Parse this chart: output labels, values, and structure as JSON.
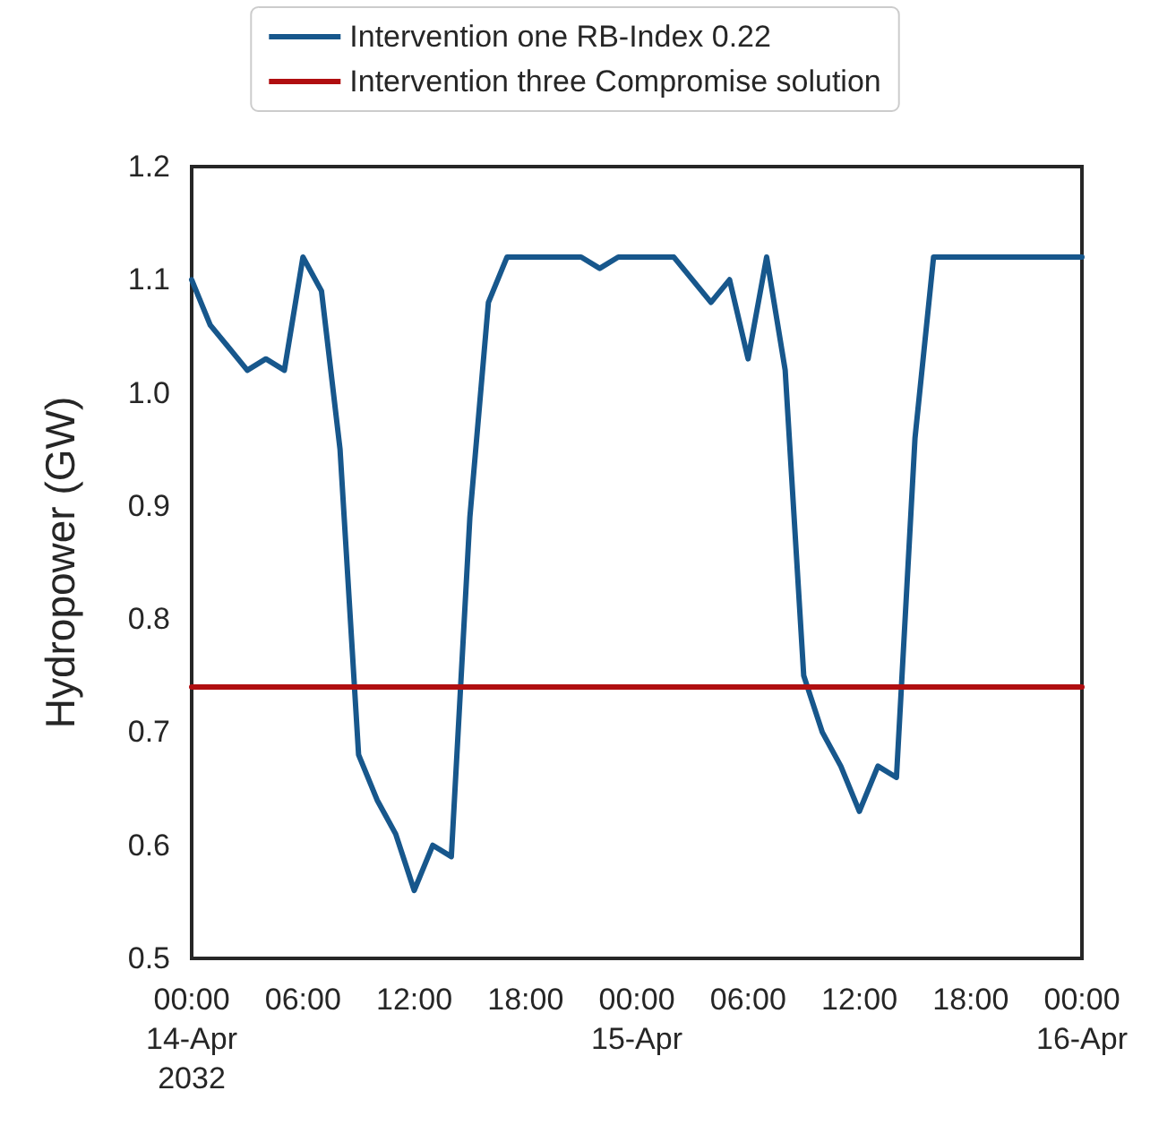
{
  "chart_data": {
    "type": "line",
    "ylabel": "Hydropower (GW)",
    "series": [
      {
        "name": "Intervention one RB-Index 0.22",
        "color": "#17578c",
        "x": [
          "2032-04-14T00:00",
          "2032-04-14T01:00",
          "2032-04-14T03:00",
          "2032-04-14T04:00",
          "2032-04-14T05:00",
          "2032-04-14T06:00",
          "2032-04-14T07:00",
          "2032-04-14T08:00",
          "2032-04-14T09:00",
          "2032-04-14T10:00",
          "2032-04-14T11:00",
          "2032-04-14T12:00",
          "2032-04-14T13:00",
          "2032-04-14T14:00",
          "2032-04-14T15:00",
          "2032-04-14T16:00",
          "2032-04-14T17:00",
          "2032-04-14T20:00",
          "2032-04-14T21:00",
          "2032-04-14T22:00",
          "2032-04-14T23:00",
          "2032-04-15T01:00",
          "2032-04-15T02:00",
          "2032-04-15T03:00",
          "2032-04-15T04:00",
          "2032-04-15T05:00",
          "2032-04-15T06:00",
          "2032-04-15T07:00",
          "2032-04-15T08:00",
          "2032-04-15T09:00",
          "2032-04-15T10:00",
          "2032-04-15T11:00",
          "2032-04-15T12:00",
          "2032-04-15T13:00",
          "2032-04-15T14:00",
          "2032-04-15T15:00",
          "2032-04-15T16:00",
          "2032-04-16T00:00"
        ],
        "values": [
          1.1,
          1.06,
          1.02,
          1.03,
          1.02,
          1.12,
          1.09,
          0.95,
          0.68,
          0.64,
          0.61,
          0.56,
          0.6,
          0.59,
          0.89,
          1.08,
          1.12,
          1.12,
          1.12,
          1.11,
          1.12,
          1.12,
          1.12,
          1.1,
          1.08,
          1.1,
          1.03,
          1.12,
          1.02,
          0.75,
          0.7,
          0.67,
          0.63,
          0.67,
          0.66,
          0.96,
          1.12,
          1.12
        ]
      },
      {
        "name": "Intervention three Compromise solution",
        "color": "#b00e10",
        "x": [
          "2032-04-14T00:00",
          "2032-04-16T00:00"
        ],
        "values": [
          0.74,
          0.74
        ]
      }
    ],
    "xlim": [
      "2032-04-14T00:00",
      "2032-04-16T00:00"
    ],
    "xticks": [
      {
        "value": "2032-04-14T00:00",
        "label": "00:00\n14-Apr\n2032"
      },
      {
        "value": "2032-04-14T06:00",
        "label": "06:00"
      },
      {
        "value": "2032-04-14T12:00",
        "label": "12:00"
      },
      {
        "value": "2032-04-14T18:00",
        "label": "18:00"
      },
      {
        "value": "2032-04-15T00:00",
        "label": "00:00\n15-Apr"
      },
      {
        "value": "2032-04-15T06:00",
        "label": "06:00"
      },
      {
        "value": "2032-04-15T12:00",
        "label": "12:00"
      },
      {
        "value": "2032-04-15T18:00",
        "label": "18:00"
      },
      {
        "value": "2032-04-16T00:00",
        "label": "00:00\n16-Apr"
      }
    ],
    "ylim": [
      0.5,
      1.2
    ],
    "yticks": [
      0.5,
      0.6,
      0.7,
      0.8,
      0.9,
      {
        "value": 1,
        "label": "1.0"
      },
      1.1,
      1.2
    ],
    "grid": false,
    "legend": "top",
    "marker": "none",
    "line_style": "solid"
  }
}
